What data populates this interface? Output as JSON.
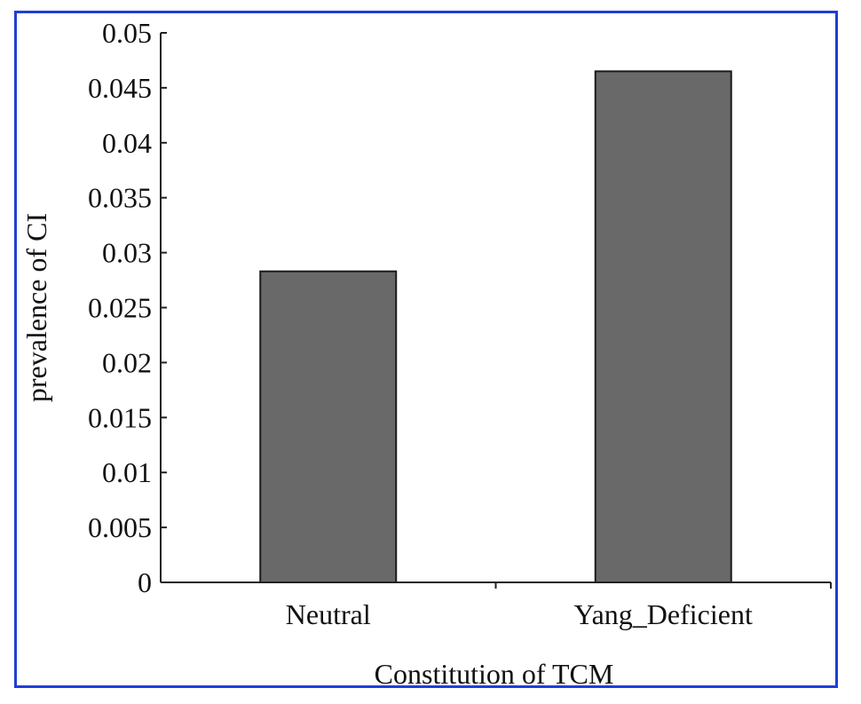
{
  "chart_data": {
    "type": "bar",
    "categories": [
      "Neutral",
      "Yang_Deficient"
    ],
    "values": [
      0.0283,
      0.0465
    ],
    "title": "",
    "xlabel": "Constitution of TCM",
    "ylabel": "prevalence of CI",
    "ylim": [
      0,
      0.05
    ],
    "yticks": [
      0,
      0.005,
      0.01,
      0.015,
      0.02,
      0.025,
      0.03,
      0.035,
      0.04,
      0.045,
      0.05
    ],
    "ytick_labels": [
      "0",
      "0.005",
      "0.01",
      "0.015",
      "0.02",
      "0.025",
      "0.03",
      "0.035",
      "0.04",
      "0.045",
      "0.05"
    ],
    "grid": false,
    "legend": "none",
    "colors": {
      "bar_fill": "#696969",
      "bar_stroke": "#1a1a1a",
      "frame_border": "#1f3fd6",
      "axis": "#222222"
    }
  }
}
